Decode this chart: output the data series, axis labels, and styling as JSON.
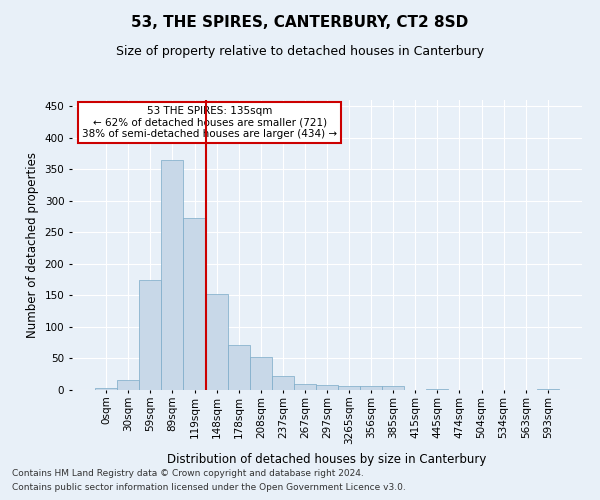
{
  "title": "53, THE SPIRES, CANTERBURY, CT2 8SD",
  "subtitle": "Size of property relative to detached houses in Canterbury",
  "xlabel": "Distribution of detached houses by size in Canterbury",
  "ylabel": "Number of detached properties",
  "footer_line1": "Contains HM Land Registry data © Crown copyright and database right 2024.",
  "footer_line2": "Contains public sector information licensed under the Open Government Licence v3.0.",
  "bin_labels": [
    "0sqm",
    "30sqm",
    "59sqm",
    "89sqm",
    "119sqm",
    "148sqm",
    "178sqm",
    "208sqm",
    "237sqm",
    "267sqm",
    "297sqm",
    "3265sqm",
    "356sqm",
    "385sqm",
    "415sqm",
    "445sqm",
    "474sqm",
    "504sqm",
    "534sqm",
    "563sqm",
    "593sqm"
  ],
  "bar_heights": [
    3,
    16,
    175,
    365,
    273,
    152,
    72,
    53,
    23,
    10,
    8,
    6,
    6,
    7,
    0,
    2,
    0,
    0,
    0,
    0,
    2
  ],
  "bar_color": "#c8d8e8",
  "bar_edge_color": "#7aaac8",
  "vline_color": "#cc0000",
  "annotation_text": "53 THE SPIRES: 135sqm\n← 62% of detached houses are smaller (721)\n38% of semi-detached houses are larger (434) →",
  "annotation_box_color": "#ffffff",
  "annotation_box_edge_color": "#cc0000",
  "ylim": [
    0,
    460
  ],
  "yticks": [
    0,
    50,
    100,
    150,
    200,
    250,
    300,
    350,
    400,
    450
  ],
  "background_color": "#e8f0f8",
  "plot_background_color": "#e8f0f8",
  "grid_color": "#ffffff",
  "title_fontsize": 11,
  "subtitle_fontsize": 9,
  "tick_label_fontsize": 7.5,
  "axis_label_fontsize": 8.5,
  "footer_fontsize": 6.5
}
